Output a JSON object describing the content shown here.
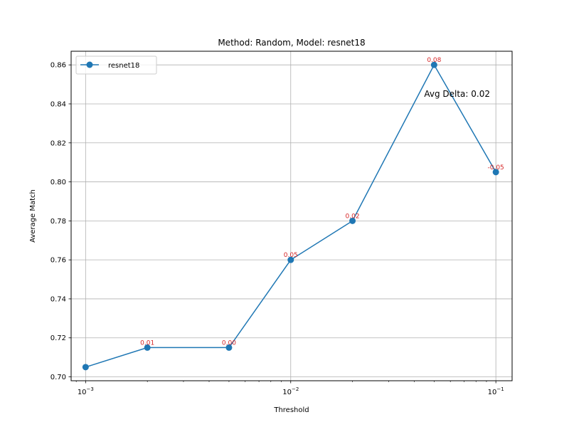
{
  "chart_data": {
    "type": "line",
    "title": "Method: Random, Model: resnet18",
    "xlabel": "Threshold",
    "ylabel": "Average Match",
    "xscale": "log",
    "xlim": [
      0.00085,
      0.12
    ],
    "ylim": [
      0.698,
      0.867
    ],
    "xticks": [
      {
        "value": 0.001,
        "base": "10",
        "exp": "−3"
      },
      {
        "value": 0.01,
        "base": "10",
        "exp": "−2"
      },
      {
        "value": 0.1,
        "base": "10",
        "exp": "−1"
      }
    ],
    "yticks": [
      0.7,
      0.72,
      0.74,
      0.76,
      0.78,
      0.8,
      0.82,
      0.84,
      0.86
    ],
    "grid": true,
    "legend_position": "top-left",
    "series": [
      {
        "name": "resnet18",
        "color": "#1f77b4",
        "x": [
          0.001,
          0.002,
          0.005,
          0.01,
          0.02,
          0.05,
          0.1
        ],
        "y": [
          0.705,
          0.715,
          0.715,
          0.76,
          0.78,
          0.86,
          0.805
        ]
      }
    ],
    "point_annotations": [
      {
        "x": 0.002,
        "y": 0.715,
        "text": "0.01"
      },
      {
        "x": 0.005,
        "y": 0.715,
        "text": "0.00"
      },
      {
        "x": 0.01,
        "y": 0.76,
        "text": "0.05"
      },
      {
        "x": 0.02,
        "y": 0.78,
        "text": "0.02"
      },
      {
        "x": 0.05,
        "y": 0.86,
        "text": "0.08"
      },
      {
        "x": 0.1,
        "y": 0.805,
        "text": "-0.05"
      }
    ],
    "annotation_color": "#d62728",
    "summary_text": "Avg Delta: 0.02"
  }
}
